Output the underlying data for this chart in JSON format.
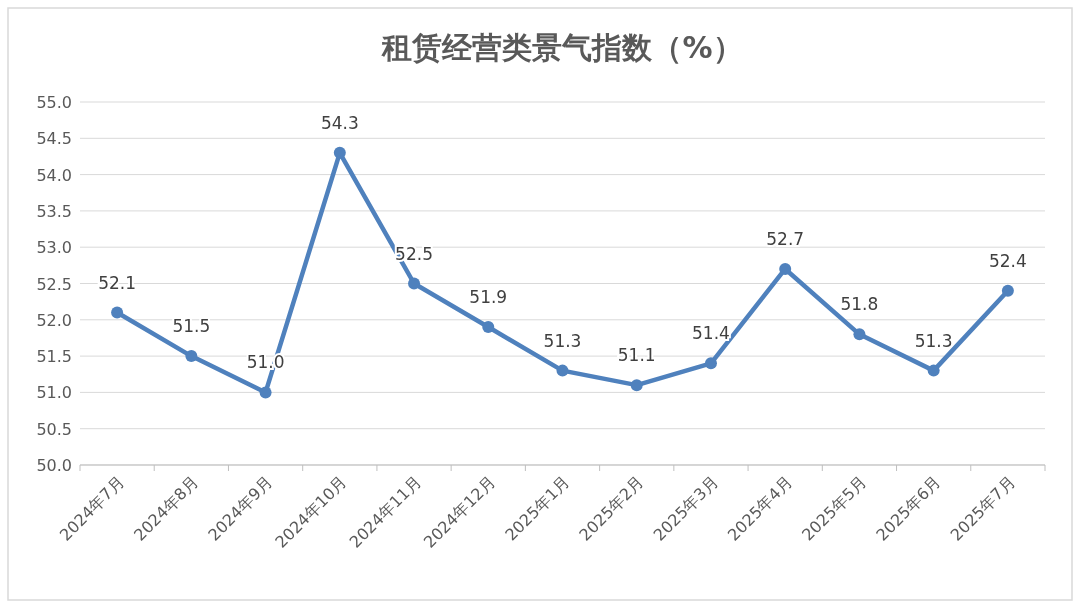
{
  "chart_data": {
    "type": "line",
    "title": "租赁经营类景气指数（%）",
    "categories": [
      "2024年7月",
      "2024年8月",
      "2024年9月",
      "2024年10月",
      "2024年11月",
      "2024年12月",
      "2025年1月",
      "2025年2月",
      "2025年3月",
      "2025年4月",
      "2025年5月",
      "2025年6月",
      "2025年7月"
    ],
    "values": [
      52.1,
      51.5,
      51.0,
      54.3,
      52.5,
      51.9,
      51.3,
      51.1,
      51.4,
      52.7,
      51.8,
      51.3,
      52.4
    ],
    "value_labels": [
      "52.1",
      "51.5",
      "51.0",
      "54.3",
      "52.5",
      "51.9",
      "51.3",
      "51.1",
      "51.4",
      "52.7",
      "51.8",
      "51.3",
      "52.4"
    ],
    "color": "#4f81bd",
    "marker": "circle",
    "line_style": "solid",
    "grid": "y",
    "ylim": [
      50,
      55
    ],
    "yticks": [
      {
        "value": 50,
        "label": "50.0"
      },
      {
        "value": 50.5,
        "label": "50.5"
      },
      {
        "value": 51,
        "label": "51.0"
      },
      {
        "value": 51.5,
        "label": "51.5"
      },
      {
        "value": 52,
        "label": "52.0"
      },
      {
        "value": 52.5,
        "label": "52.5"
      },
      {
        "value": 53,
        "label": "53.0"
      },
      {
        "value": 53.5,
        "label": "53.5"
      },
      {
        "value": 54,
        "label": "54.0"
      },
      {
        "value": 54.5,
        "label": "54.5"
      },
      {
        "value": 55,
        "label": "55.0"
      }
    ]
  }
}
